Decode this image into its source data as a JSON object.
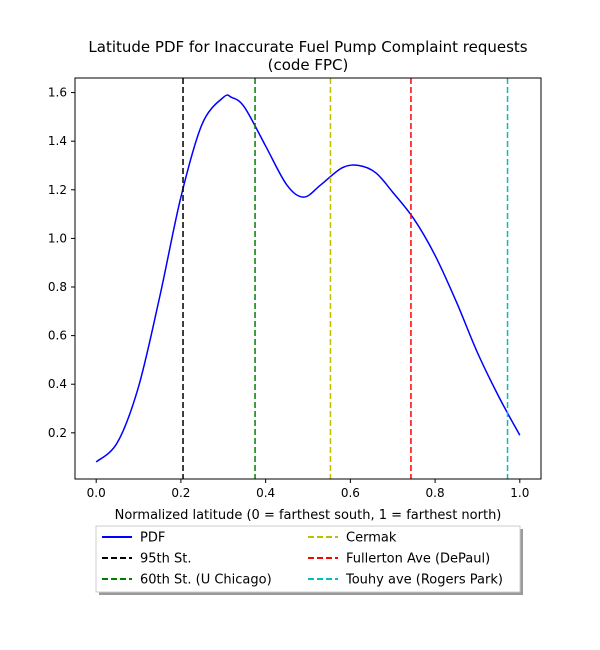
{
  "chart_data": {
    "type": "line",
    "title_line1": "Latitude PDF for Inaccurate Fuel Pump Complaint  requests",
    "title_line2": "(code FPC)",
    "xlabel": "Normalized latitude (0 = farthest south, 1 = farthest north)",
    "ylabel": "",
    "xlim": [
      -0.05,
      1.05
    ],
    "ylim": [
      0.01,
      1.66
    ],
    "xticks": [
      0.0,
      0.2,
      0.4,
      0.6,
      0.8,
      1.0
    ],
    "xtick_labels": [
      "0.0",
      "0.2",
      "0.4",
      "0.6",
      "0.8",
      "1.0"
    ],
    "yticks": [
      0.2,
      0.4,
      0.6,
      0.8,
      1.0,
      1.2,
      1.4,
      1.6
    ],
    "ytick_labels": [
      "0.2",
      "0.4",
      "0.6",
      "0.8",
      "1.0",
      "1.2",
      "1.4",
      "1.6"
    ],
    "grid": false,
    "legend_position": "below-plot",
    "series": [
      {
        "name": "PDF",
        "color": "#0000ff",
        "style": "solid",
        "x": [
          0.0,
          0.05,
          0.1,
          0.15,
          0.2,
          0.25,
          0.3,
          0.32,
          0.35,
          0.4,
          0.45,
          0.49,
          0.53,
          0.58,
          0.62,
          0.66,
          0.7,
          0.75,
          0.8,
          0.85,
          0.9,
          0.95,
          1.0
        ],
        "y": [
          0.08,
          0.16,
          0.39,
          0.76,
          1.17,
          1.47,
          1.58,
          1.58,
          1.54,
          1.38,
          1.22,
          1.17,
          1.22,
          1.29,
          1.3,
          1.27,
          1.19,
          1.08,
          0.93,
          0.74,
          0.53,
          0.35,
          0.19
        ]
      }
    ],
    "vlines": [
      {
        "name": "95th St.",
        "x": 0.205,
        "color": "#000000"
      },
      {
        "name": "60th St. (U Chicago)",
        "x": 0.375,
        "color": "#008000"
      },
      {
        "name": "Cermak",
        "x": 0.553,
        "color": "#bfbf00"
      },
      {
        "name": "Fullerton Ave (DePaul)",
        "x": 0.743,
        "color": "#ff0000"
      },
      {
        "name": "Touhy ave (Rogers Park)",
        "x": 0.971,
        "color": "#00bfbf"
      }
    ],
    "legend": [
      {
        "label": "PDF",
        "color": "#0000ff",
        "style": "solid"
      },
      {
        "label": "95th St.",
        "color": "#000000",
        "style": "dashed"
      },
      {
        "label": "60th St. (U Chicago)",
        "color": "#008000",
        "style": "dashed"
      },
      {
        "label": "Cermak",
        "color": "#bfbf00",
        "style": "dashed"
      },
      {
        "label": "Fullerton Ave (DePaul)",
        "color": "#ff0000",
        "style": "dashed"
      },
      {
        "label": "Touhy ave (Rogers Park)",
        "color": "#00bfbf",
        "style": "dashed"
      }
    ]
  }
}
